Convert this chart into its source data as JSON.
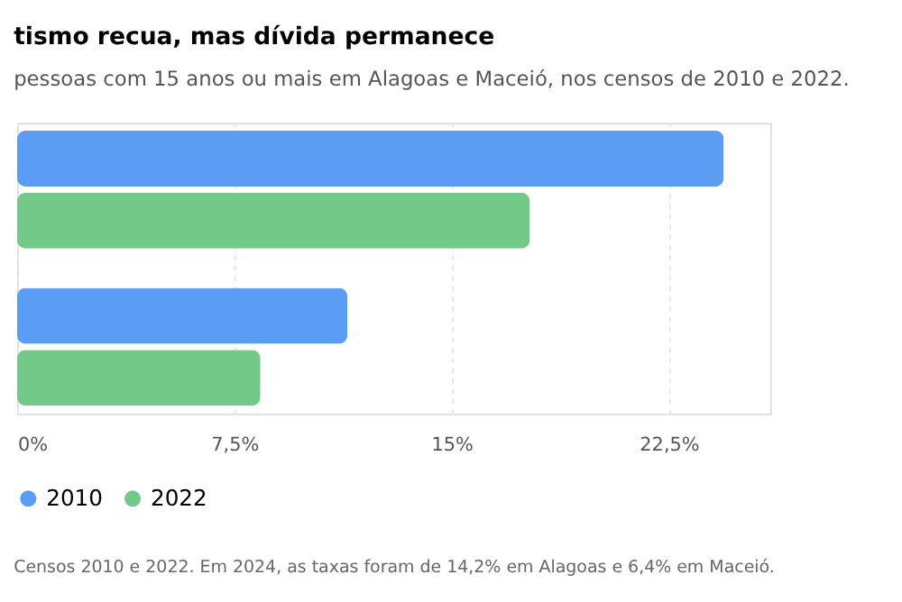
{
  "chart_data": {
    "type": "bar",
    "orientation": "horizontal",
    "title": "tismo recua, mas dívida permanece",
    "subtitle": "pessoas com 15 anos ou mais em Alagoas e Maceió, nos censos de 2010 e 2022.",
    "categories": [
      null,
      null
    ],
    "series": [
      {
        "name": "2010",
        "color": "#5b9cf5",
        "values": [
          24.4,
          11.4
        ]
      },
      {
        "name": "2022",
        "color": "#72c988",
        "values": [
          17.7,
          8.4
        ]
      }
    ],
    "xlim": [
      0,
      26
    ],
    "xticks": [
      {
        "value": 0,
        "label": "0%"
      },
      {
        "value": 7.5,
        "label": "7,5%"
      },
      {
        "value": 15,
        "label": "15%"
      },
      {
        "value": 22.5,
        "label": "22,5%"
      }
    ],
    "grid": "x",
    "legend": "bottom",
    "annotations": [
      "Censos 2010 e 2022. Em 2024, as taxas foram de 14,2% em Alagoas e 6,4% em Maceió."
    ]
  }
}
